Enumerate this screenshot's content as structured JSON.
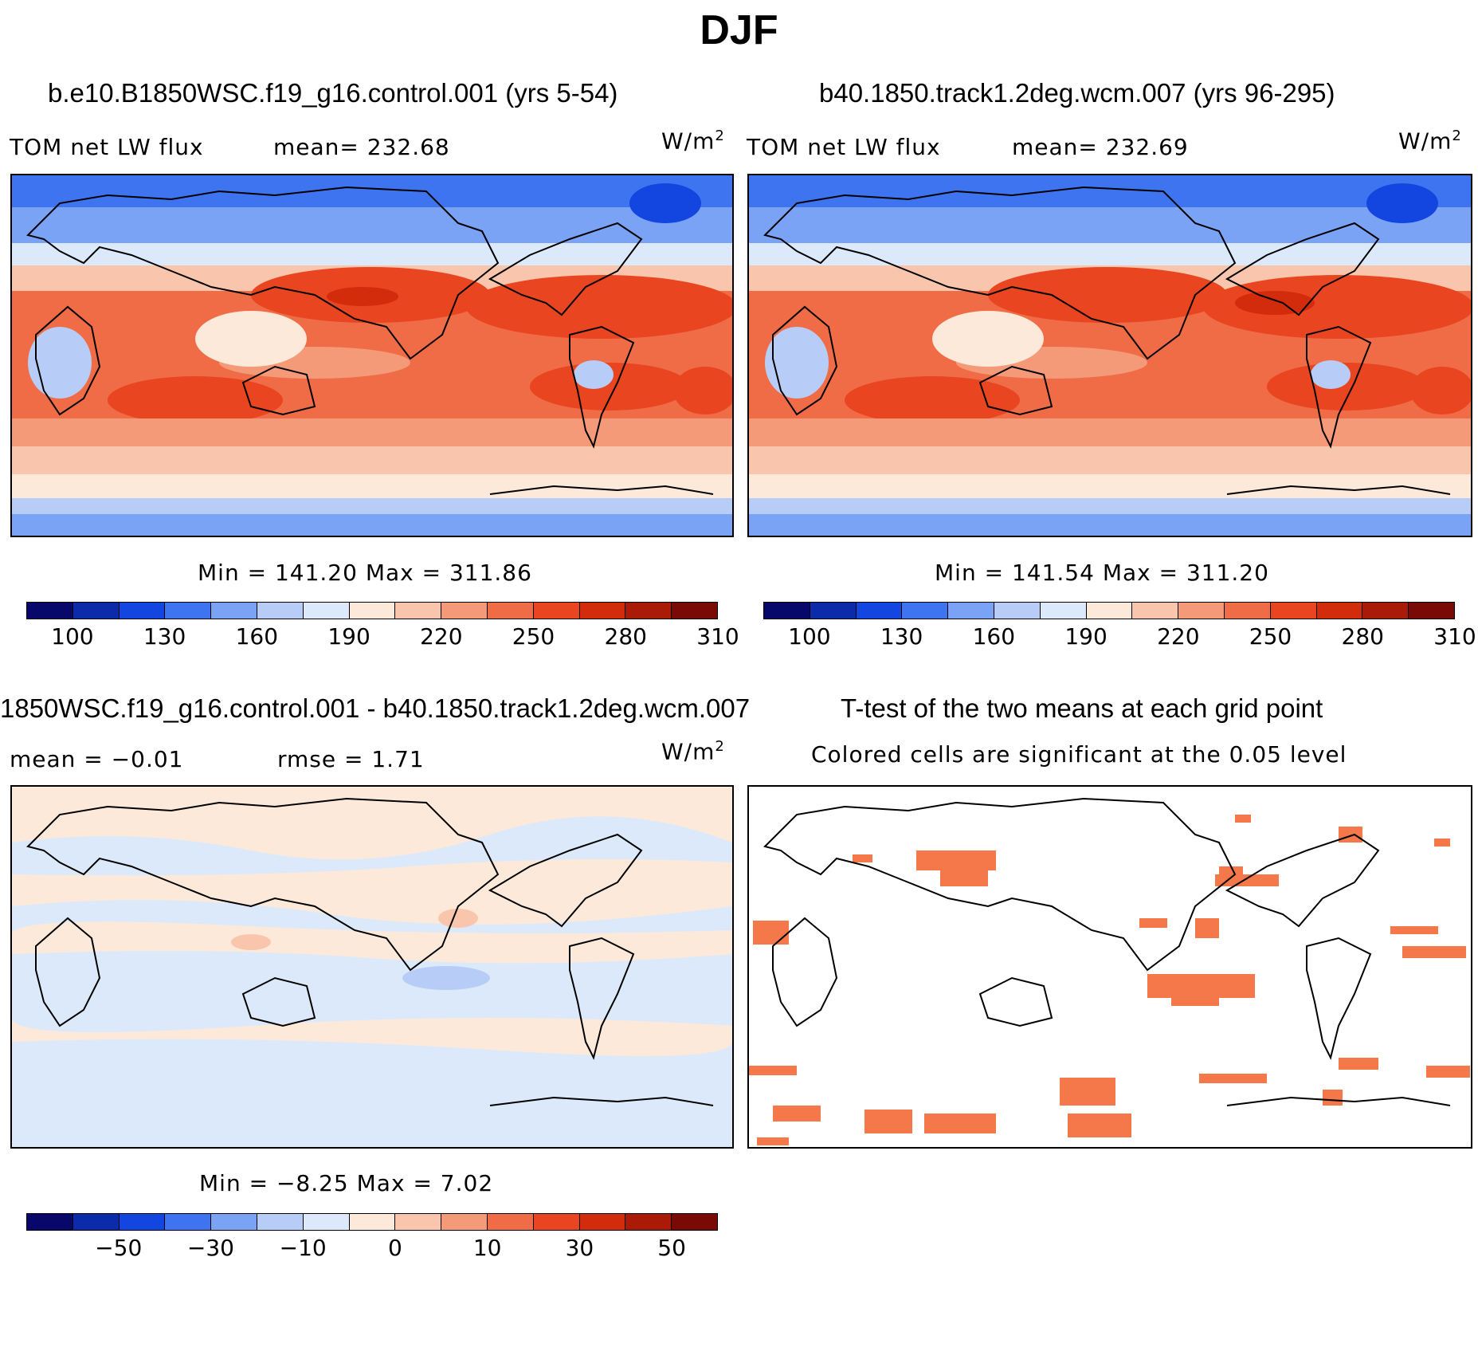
{
  "title": "DJF",
  "panels": {
    "a": {
      "title": "b.e10.B1850WSC.f19_g16.control.001 (yrs 5-54)",
      "variable": "TOM net LW flux",
      "mean": "mean= 232.68",
      "units": "W/m",
      "units_sup": "2",
      "minmax": "Min = 141.20 Max = 311.86"
    },
    "b": {
      "title": "b40.1850.track1.2deg.wcm.007 (yrs 96-295)",
      "variable": "TOM net LW flux",
      "mean": "mean= 232.69",
      "units": "W/m",
      "units_sup": "2",
      "minmax": "Min = 141.54 Max = 311.20"
    },
    "c": {
      "title": "1850WSC.f19_g16.control.001 - b40.1850.track1.2deg.wcm.007",
      "mean": "mean =  −0.01",
      "rmse": "rmse =   1.71",
      "units": "W/m",
      "units_sup": "2",
      "minmax": "Min =  −8.25 Max =   7.02"
    },
    "d": {
      "title": "T-test of the two means at each grid point",
      "subtitle": "Colored cells are significant at the 0.05 level"
    }
  },
  "colorbars": {
    "abs": {
      "colors": [
        "#08086b",
        "#0b2bab",
        "#1346e0",
        "#3e74ef",
        "#7ba3f5",
        "#b7cdf7",
        "#dce9fb",
        "#fde9d9",
        "#f9c6ad",
        "#f59a78",
        "#f06c46",
        "#e84520",
        "#d22c0c",
        "#a91b07",
        "#7a0a05"
      ],
      "labels": [
        "100",
        "130",
        "160",
        "190",
        "220",
        "250",
        "280",
        "310"
      ]
    },
    "diff": {
      "colors": [
        "#08086b",
        "#0b2bab",
        "#1346e0",
        "#3e74ef",
        "#7ba3f5",
        "#b7cdf7",
        "#dce9fb",
        "#fde9d9",
        "#f9c6ad",
        "#f59a78",
        "#f06c46",
        "#e84520",
        "#d22c0c",
        "#a91b07",
        "#7a0a05"
      ],
      "labels": [
        "−50",
        "−30",
        "−10",
        "0",
        "10",
        "30",
        "50"
      ]
    }
  }
}
